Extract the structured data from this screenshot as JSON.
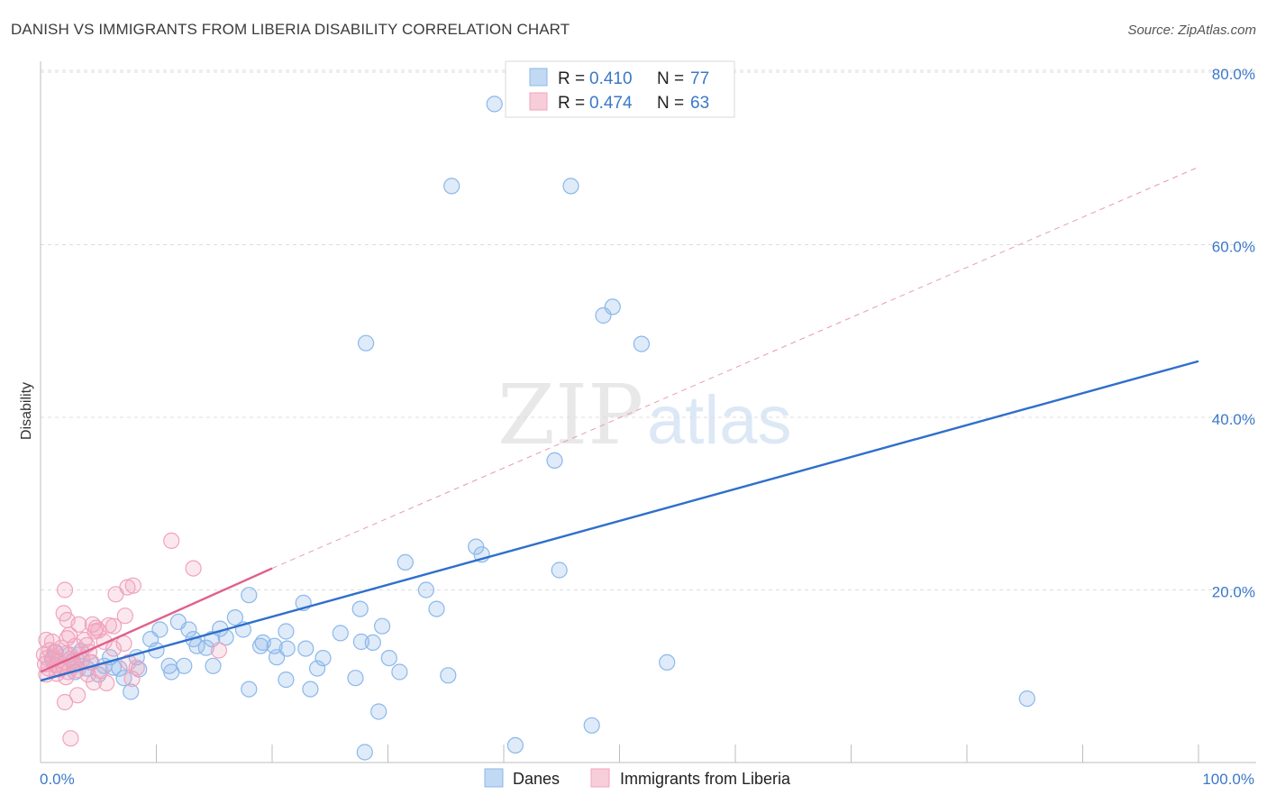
{
  "chart_data": {
    "type": "scatter",
    "title": "DANISH VS IMMIGRANTS FROM LIBERIA DISABILITY CORRELATION CHART",
    "source": "Source: ZipAtlas.com",
    "xlabel": "",
    "ylabel": "Disability",
    "xlim": [
      0,
      100
    ],
    "ylim": [
      0,
      80
    ],
    "x_tick_labels": [
      "0.0%",
      "100.0%"
    ],
    "y_ticks": [
      20,
      40,
      60,
      80
    ],
    "y_tick_labels": [
      "20.0%",
      "40.0%",
      "60.0%",
      "80.0%"
    ],
    "grid": true,
    "legend_position": "bottom",
    "watermark": "ZIPatlas",
    "series": [
      {
        "name": "Danes",
        "r_label": "R =",
        "r": "0.410",
        "n_label": "N =",
        "n": "77",
        "color": "#8bb8ea",
        "line_color": "#2f6fcc",
        "trend": {
          "x0": 0,
          "y0": 9.5,
          "x1": 100,
          "y1": 46.5
        },
        "points": [
          [
            39.2,
            76.3
          ],
          [
            35.5,
            66.8
          ],
          [
            45.8,
            66.8
          ],
          [
            28.1,
            48.6
          ],
          [
            48.6,
            51.8
          ],
          [
            49.4,
            52.8
          ],
          [
            51.9,
            48.5
          ],
          [
            44.4,
            35.0
          ],
          [
            37.6,
            25.0
          ],
          [
            38.1,
            24.1
          ],
          [
            44.8,
            22.3
          ],
          [
            31.5,
            23.2
          ],
          [
            33.3,
            20.0
          ],
          [
            18.0,
            19.4
          ],
          [
            22.7,
            18.5
          ],
          [
            27.6,
            17.8
          ],
          [
            34.2,
            17.8
          ],
          [
            16.8,
            16.8
          ],
          [
            11.9,
            16.3
          ],
          [
            10.3,
            15.4
          ],
          [
            12.8,
            15.4
          ],
          [
            15.5,
            15.5
          ],
          [
            17.5,
            15.4
          ],
          [
            21.2,
            15.2
          ],
          [
            25.9,
            15.0
          ],
          [
            29.5,
            15.8
          ],
          [
            27.7,
            14.0
          ],
          [
            28.7,
            13.9
          ],
          [
            9.5,
            14.3
          ],
          [
            13.2,
            14.3
          ],
          [
            14.8,
            14.3
          ],
          [
            16.0,
            14.5
          ],
          [
            19.2,
            13.9
          ],
          [
            20.2,
            13.5
          ],
          [
            13.5,
            13.5
          ],
          [
            14.3,
            13.3
          ],
          [
            19.0,
            13.5
          ],
          [
            21.3,
            13.2
          ],
          [
            22.9,
            13.2
          ],
          [
            24.4,
            12.1
          ],
          [
            8.3,
            12.2
          ],
          [
            10.0,
            13.0
          ],
          [
            20.4,
            12.2
          ],
          [
            30.1,
            12.1
          ],
          [
            11.1,
            11.2
          ],
          [
            12.4,
            11.2
          ],
          [
            14.9,
            11.2
          ],
          [
            23.9,
            10.9
          ],
          [
            8.5,
            10.8
          ],
          [
            11.3,
            10.5
          ],
          [
            5.5,
            11.2
          ],
          [
            6.3,
            11.0
          ],
          [
            6.8,
            10.9
          ],
          [
            4.0,
            10.9
          ],
          [
            5.0,
            10.2
          ],
          [
            7.2,
            9.8
          ],
          [
            21.2,
            9.6
          ],
          [
            27.2,
            9.8
          ],
          [
            35.2,
            10.1
          ],
          [
            18.0,
            8.5
          ],
          [
            23.3,
            8.5
          ],
          [
            7.8,
            8.2
          ],
          [
            29.2,
            5.9
          ],
          [
            47.6,
            4.3
          ],
          [
            28.0,
            1.2
          ],
          [
            41.0,
            2.0
          ],
          [
            54.1,
            11.6
          ],
          [
            85.2,
            7.4
          ],
          [
            2.5,
            12.5
          ],
          [
            2.8,
            11.8
          ],
          [
            3.5,
            12.9
          ],
          [
            6.0,
            12.2
          ],
          [
            1.3,
            12.8
          ],
          [
            1.0,
            12.0
          ],
          [
            3.0,
            10.5
          ],
          [
            4.3,
            11.6
          ],
          [
            31.0,
            10.5
          ]
        ]
      },
      {
        "name": "Immigrants from Liberia",
        "r_label": "R =",
        "r": "0.474",
        "n_label": "N =",
        "n": "63",
        "color": "#f1a2bd",
        "line_color": "#e0608c",
        "trend": {
          "x0": 0,
          "y0": 10.5,
          "x1": 20,
          "y1": 22.5
        },
        "extension": {
          "x0": 20,
          "y0": 22.5,
          "x1": 100,
          "y1": 69.0
        },
        "points": [
          [
            11.3,
            25.7
          ],
          [
            13.2,
            22.5
          ],
          [
            8.0,
            20.5
          ],
          [
            7.5,
            20.3
          ],
          [
            6.5,
            19.5
          ],
          [
            2.1,
            20.0
          ],
          [
            2.0,
            17.3
          ],
          [
            7.3,
            17.0
          ],
          [
            2.3,
            16.5
          ],
          [
            4.5,
            16.0
          ],
          [
            4.8,
            15.6
          ],
          [
            5.0,
            15.3
          ],
          [
            6.3,
            15.8
          ],
          [
            4.7,
            15.2
          ],
          [
            3.3,
            16.0
          ],
          [
            2.3,
            14.4
          ],
          [
            3.8,
            14.2
          ],
          [
            5.9,
            15.9
          ],
          [
            2.5,
            14.8
          ],
          [
            0.5,
            14.2
          ],
          [
            1.0,
            14.0
          ],
          [
            5.5,
            14.0
          ],
          [
            7.2,
            13.8
          ],
          [
            4.0,
            13.6
          ],
          [
            3.0,
            13.5
          ],
          [
            1.8,
            13.3
          ],
          [
            0.8,
            13.0
          ],
          [
            6.3,
            13.2
          ],
          [
            4.2,
            12.8
          ],
          [
            3.3,
            12.5
          ],
          [
            2.2,
            12.6
          ],
          [
            1.2,
            12.8
          ],
          [
            0.3,
            12.5
          ],
          [
            0.6,
            12.1
          ],
          [
            1.1,
            12.2
          ],
          [
            1.5,
            11.8
          ],
          [
            2.6,
            12.0
          ],
          [
            3.6,
            11.9
          ],
          [
            4.4,
            11.6
          ],
          [
            0.4,
            11.4
          ],
          [
            1.3,
            11.3
          ],
          [
            2.0,
            11.1
          ],
          [
            2.9,
            11.2
          ],
          [
            0.7,
            10.9
          ],
          [
            1.7,
            10.8
          ],
          [
            2.4,
            10.5
          ],
          [
            3.2,
            10.7
          ],
          [
            4.1,
            10.2
          ],
          [
            5.2,
            10.6
          ],
          [
            0.5,
            10.2
          ],
          [
            1.4,
            10.3
          ],
          [
            2.2,
            9.9
          ],
          [
            4.6,
            9.3
          ],
          [
            5.7,
            9.2
          ],
          [
            7.9,
            9.7
          ],
          [
            15.4,
            13.0
          ],
          [
            7.6,
            11.6
          ],
          [
            8.3,
            11.0
          ],
          [
            3.2,
            7.8
          ],
          [
            2.1,
            7.0
          ],
          [
            2.6,
            2.8
          ],
          [
            1.6,
            10.9
          ],
          [
            2.8,
            11.7
          ]
        ]
      }
    ]
  }
}
